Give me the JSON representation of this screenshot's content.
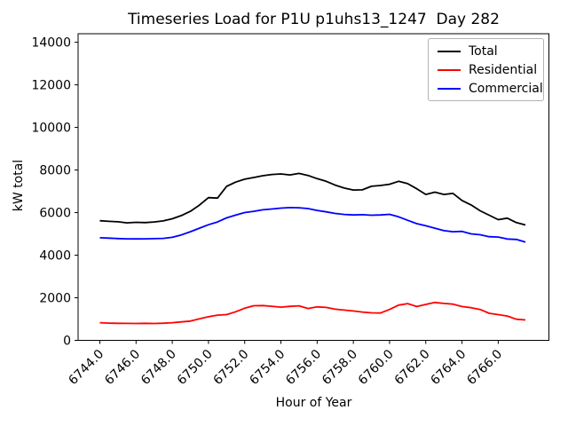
{
  "chart_data": {
    "type": "line",
    "title": "Timeseries Load for P1U p1uhs13_1247  Day 282",
    "xlabel": "Hour of Year",
    "ylabel": "kW total",
    "xlim": [
      6742.8,
      6768.8
    ],
    "ylim": [
      0,
      14400
    ],
    "grid": false,
    "legend_position": "upper right",
    "x_ticks": [
      6744,
      6746,
      6748,
      6750,
      6752,
      6754,
      6756,
      6758,
      6760,
      6762,
      6764,
      6766
    ],
    "x_tick_labels": [
      "6744.0",
      "6746.0",
      "6748.0",
      "6750.0",
      "6752.0",
      "6754.0",
      "6756.0",
      "6758.0",
      "6760.0",
      "6762.0",
      "6764.0",
      "6766.0"
    ],
    "y_ticks": [
      0,
      2000,
      4000,
      6000,
      8000,
      10000,
      12000,
      14000
    ],
    "y_tick_labels": [
      "0",
      "2000",
      "4000",
      "6000",
      "8000",
      "10000",
      "12000",
      "14000"
    ],
    "x": [
      6744.0,
      6744.5,
      6745.0,
      6745.5,
      6746.0,
      6746.5,
      6747.0,
      6747.5,
      6748.0,
      6748.5,
      6749.0,
      6749.5,
      6750.0,
      6750.5,
      6751.0,
      6751.5,
      6752.0,
      6752.5,
      6753.0,
      6753.5,
      6754.0,
      6754.5,
      6755.0,
      6755.5,
      6756.0,
      6756.5,
      6757.0,
      6757.5,
      6758.0,
      6758.5,
      6759.0,
      6759.5,
      6760.0,
      6760.5,
      6761.0,
      6761.5,
      6762.0,
      6762.5,
      6763.0,
      6763.5,
      6764.0,
      6764.5,
      6765.0,
      6765.5,
      6766.0,
      6766.5,
      6767.0,
      6767.5
    ],
    "series": [
      {
        "name": "Total",
        "color": "#000000",
        "values": [
          5620,
          5590,
          5570,
          5520,
          5545,
          5530,
          5560,
          5610,
          5710,
          5860,
          6060,
          6350,
          6700,
          6680,
          7230,
          7430,
          7570,
          7650,
          7730,
          7790,
          7815,
          7770,
          7840,
          7745,
          7595,
          7470,
          7290,
          7150,
          7060,
          7070,
          7235,
          7275,
          7330,
          7470,
          7360,
          7120,
          6850,
          6960,
          6850,
          6900,
          6570,
          6360,
          6085,
          5875,
          5670,
          5740,
          5530,
          5420
        ]
      },
      {
        "name": "Residential",
        "color": "#ff0000",
        "values": [
          830,
          810,
          800,
          795,
          790,
          800,
          790,
          805,
          830,
          865,
          905,
          1010,
          1110,
          1185,
          1210,
          1340,
          1510,
          1625,
          1635,
          1600,
          1560,
          1595,
          1620,
          1495,
          1570,
          1545,
          1465,
          1420,
          1380,
          1330,
          1290,
          1285,
          1450,
          1655,
          1725,
          1590,
          1690,
          1780,
          1735,
          1700,
          1590,
          1535,
          1450,
          1270,
          1210,
          1140,
          990,
          960
        ]
      },
      {
        "name": "Commercial",
        "color": "#0000ff",
        "values": [
          4820,
          4800,
          4780,
          4770,
          4765,
          4770,
          4775,
          4790,
          4840,
          4950,
          5100,
          5270,
          5430,
          5560,
          5750,
          5880,
          6000,
          6060,
          6130,
          6170,
          6210,
          6235,
          6225,
          6190,
          6100,
          6035,
          5960,
          5915,
          5890,
          5900,
          5875,
          5890,
          5920,
          5800,
          5640,
          5480,
          5380,
          5270,
          5150,
          5100,
          5120,
          5000,
          4960,
          4870,
          4850,
          4760,
          4740,
          4620
        ]
      }
    ],
    "colors": {
      "spine": "#000000",
      "tick": "#000000",
      "legend_border": "#b3b3b3",
      "background": "#ffffff"
    }
  }
}
